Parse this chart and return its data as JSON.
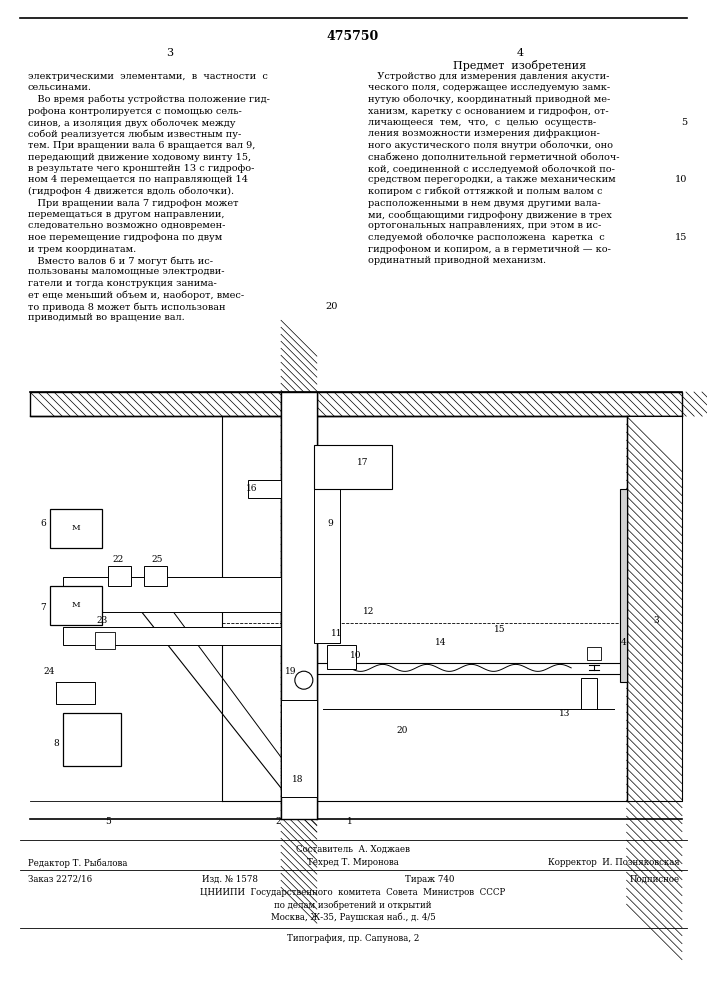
{
  "patent_number": "475750",
  "page_left": "3",
  "page_right": "4",
  "right_col_header": "Предмет  изобретения",
  "left_col_lines": [
    "электрическими  элементами,  в  частности  с",
    "сельсинами.",
    "   Во время работы устройства положение гид-",
    "рофона контролируется с помощью сель-",
    "синов, а изоляция двух оболочек между",
    "собой реализуется любым известным пу-",
    "тем. При вращении вала 6 вращается вал 9,",
    "передающий движение ходовому винту 15,",
    "в результате чего кронштейн 13 с гидрофо-",
    "ном 4 перемещается по направляющей 14",
    "(гидрофон 4 движется вдоль оболочки).",
    "   При вращении вала 7 гидрофон может",
    "перемещаться в другом направлении,",
    "следовательно возможно одновремен-",
    "ное перемещение гидрофона по двум",
    "и трем координатам.",
    "   Вместо валов 6 и 7 могут быть ис-",
    "пользованы маломощные электродви-",
    "гатели и тогда конструкция занима-",
    "ет еще меньший объем и, наоборот, вмес-",
    "то привода 8 может быть использован",
    "приводимый во вращение вал.",
    "20"
  ],
  "right_col_lines": [
    "   Устройство для измерения давления акусти-",
    "ческого поля, содержащее исследуемую замк-",
    "нутую оболочку, координатный приводной ме-",
    "ханизм, каретку с основанием и гидрофон, от-",
    "личающееся  тем,  что,  с  целью  осуществ-",
    "ления возможности измерения дифракцион-",
    "ного акустического поля внутри оболочки, оно",
    "снабжено дополнительной герметичной оболоч-",
    "кой, соединенной с исследуемой оболочкой по-",
    "средством перегородки, а также механическим",
    "копиром с гибкой оттяжкой и полым валом с",
    "расположенными в нем двумя другими вала-",
    "ми, сообщающими гидрофону движение в трех",
    "ортогональных направлениях, при этом в ис-",
    "следуемой оболочке расположена  каретка  с",
    "гидрофоном и копиром, а в герметичной — ко-",
    "ординатный приводной механизм."
  ],
  "bg_color": "#ffffff",
  "text_color": "#000000",
  "font_size_body": 7.0,
  "font_size_header": 8.0,
  "font_size_patent": 9.0,
  "font_size_page": 8.0,
  "font_size_footer": 6.2
}
